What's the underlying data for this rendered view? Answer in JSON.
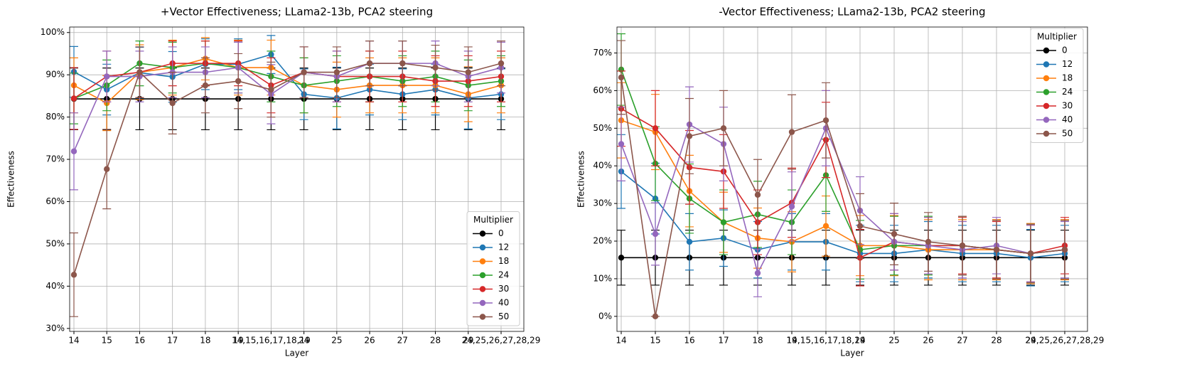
{
  "chart_data": [
    {
      "type": "line",
      "title": "+Vector Effectiveness; LLama2-13b, PCA2 steering",
      "x_label": "Layer",
      "y_label": "Effectiveness",
      "categories": [
        "14",
        "15",
        "16",
        "17",
        "18",
        "19",
        "14,15,16,17,18,19",
        "24",
        "25",
        "26",
        "27",
        "28",
        "29",
        "24,25,26,27,28,29"
      ],
      "ylim": [
        29.3,
        101.3
      ],
      "yticks": [
        {
          "value": 30,
          "label": "30%"
        },
        {
          "value": 40,
          "label": "40%"
        },
        {
          "value": 50,
          "label": "50%"
        },
        {
          "value": 60,
          "label": "60%"
        },
        {
          "value": 70,
          "label": "70%"
        },
        {
          "value": 80,
          "label": "80%"
        },
        {
          "value": 90,
          "label": "90%"
        },
        {
          "value": 100,
          "label": "100%"
        }
      ],
      "grid": true,
      "legend": {
        "title": "Multiplier",
        "loc": "lower right"
      },
      "series": [
        {
          "name": "0",
          "color": "#000000",
          "values": [
            84.3,
            84.3,
            84.3,
            84.3,
            84.3,
            84.3,
            84.3,
            84.3,
            84.3,
            84.3,
            84.3,
            84.3,
            84.3,
            84.3
          ],
          "errors": [
            7.3,
            7.3,
            7.3,
            7.3,
            7.3,
            7.3,
            7.3,
            7.3,
            7.3,
            7.3,
            7.3,
            7.3,
            7.3,
            7.3
          ]
        },
        {
          "name": "12",
          "color": "#1f77b4",
          "values": [
            90.7,
            86.5,
            90.5,
            89.5,
            92.5,
            92.5,
            94.8,
            85.4,
            84.5,
            86.5,
            85.4,
            86.5,
            84.5,
            85.4
          ],
          "errors": [
            6,
            6,
            6,
            6,
            6,
            6,
            4.5,
            6,
            7.3,
            6,
            6,
            6,
            7.3,
            6
          ]
        },
        {
          "name": "18",
          "color": "#ff7f0e",
          "values": [
            87.5,
            83.3,
            90.6,
            91.7,
            93.8,
            91.7,
            91.7,
            87.5,
            86.5,
            87.5,
            87.5,
            87.5,
            85.4,
            87.5
          ],
          "errors": [
            6.5,
            6.5,
            6.5,
            6.5,
            5,
            6.5,
            6.5,
            6.5,
            6.5,
            6.5,
            6.5,
            6.5,
            6.5,
            6.5
          ]
        },
        {
          "name": "24",
          "color": "#2ca02c",
          "values": [
            84.4,
            87.5,
            92.7,
            91.7,
            92.7,
            91.7,
            89.6,
            87.5,
            88.5,
            89.6,
            88.5,
            89.6,
            87.5,
            88.5
          ],
          "errors": [
            6,
            6,
            5.3,
            6,
            5.3,
            6,
            6,
            6.5,
            6,
            6,
            6,
            6,
            6,
            6
          ]
        },
        {
          "name": "30",
          "color": "#d62728",
          "values": [
            84.4,
            89.6,
            90.6,
            92.7,
            92.7,
            92.7,
            87.5,
            90.6,
            89.6,
            89.6,
            89.6,
            88.5,
            88.5,
            89.6
          ],
          "errors": [
            7.3,
            6,
            6,
            5.3,
            5.3,
            5.3,
            6.5,
            6,
            6,
            6,
            6,
            6,
            6,
            6
          ]
        },
        {
          "name": "40",
          "color": "#9467bd",
          "values": [
            71.9,
            89.6,
            89.6,
            90.6,
            90.6,
            91.7,
            85.4,
            90.6,
            89.6,
            92.7,
            92.7,
            92.7,
            89.6,
            91.7
          ],
          "errors": [
            9.1,
            6,
            6,
            6,
            6,
            6,
            7,
            6,
            6,
            5.3,
            5.3,
            5.3,
            6,
            6
          ]
        },
        {
          "name": "50",
          "color": "#8c564b",
          "values": [
            42.7,
            67.7,
            90.6,
            83.3,
            87.5,
            88.5,
            86.5,
            90.6,
            90.6,
            92.7,
            92.7,
            91.7,
            90.6,
            92.7
          ],
          "errors": [
            9.9,
            9.4,
            6,
            7.3,
            6.5,
            6.5,
            6.5,
            6,
            6,
            5.3,
            5.3,
            5.3,
            6,
            5.3
          ]
        }
      ]
    },
    {
      "type": "line",
      "title": "-Vector Effectiveness; LLama2-13b, PCA2 steering",
      "x_label": "Layer",
      "y_label": "Effectiveness",
      "categories": [
        "14",
        "15",
        "16",
        "17",
        "18",
        "19",
        "14,15,16,17,18,19",
        "24",
        "25",
        "26",
        "27",
        "28",
        "29",
        "24,25,26,27,28,29"
      ],
      "ylim": [
        -4.0,
        76.9
      ],
      "yticks": [
        {
          "value": 0,
          "label": "0%"
        },
        {
          "value": 10,
          "label": "10%"
        },
        {
          "value": 20,
          "label": "20%"
        },
        {
          "value": 30,
          "label": "30%"
        },
        {
          "value": 40,
          "label": "40%"
        },
        {
          "value": 50,
          "label": "50%"
        },
        {
          "value": 60,
          "label": "60%"
        },
        {
          "value": 70,
          "label": "70%"
        }
      ],
      "grid": true,
      "legend": {
        "title": "Multiplier",
        "loc": "upper right"
      },
      "series": [
        {
          "name": "0",
          "color": "#000000",
          "values": [
            15.6,
            15.6,
            15.6,
            15.6,
            15.6,
            15.6,
            15.6,
            15.6,
            15.6,
            15.6,
            15.6,
            15.6,
            15.6,
            15.6
          ],
          "errors": [
            7.3,
            7.3,
            7.3,
            7.3,
            7.3,
            7.3,
            7.3,
            7.3,
            7.3,
            7.3,
            7.3,
            7.3,
            7.3,
            7.3
          ]
        },
        {
          "name": "12",
          "color": "#1f77b4",
          "values": [
            38.5,
            31.3,
            19.8,
            20.8,
            17.7,
            19.8,
            19.8,
            16.7,
            16.7,
            17.7,
            16.7,
            16.7,
            15.6,
            16.7
          ],
          "errors": [
            9.8,
            9.4,
            7.5,
            7.5,
            7.5,
            7.5,
            7.5,
            7.5,
            7.5,
            7.5,
            7.5,
            7.5,
            7.5,
            7.5
          ]
        },
        {
          "name": "18",
          "color": "#ff7f0e",
          "values": [
            52.1,
            49.0,
            33.3,
            25.0,
            20.8,
            19.8,
            24.0,
            18.8,
            18.8,
            17.7,
            17.7,
            17.7,
            16.7,
            17.7
          ],
          "errors": [
            10,
            10,
            9.5,
            8,
            8,
            8,
            8,
            8,
            8,
            8,
            8,
            8,
            8,
            8
          ]
        },
        {
          "name": "24",
          "color": "#2ca02c",
          "values": [
            65.6,
            40.6,
            31.3,
            25.0,
            27.1,
            25.0,
            37.5,
            17.7,
            18.8,
            18.8,
            18.8,
            17.7,
            16.7,
            17.7
          ],
          "errors": [
            9.5,
            9.8,
            9.2,
            8.6,
            8.8,
            8.6,
            9.6,
            7.8,
            7.8,
            7.8,
            7.8,
            7.8,
            7.8,
            7.8
          ]
        },
        {
          "name": "30",
          "color": "#d62728",
          "values": [
            55.2,
            50.0,
            39.6,
            38.5,
            25.0,
            30.2,
            46.9,
            15.6,
            19.8,
            18.8,
            18.8,
            17.7,
            16.7,
            18.8
          ],
          "errors": [
            10,
            10,
            9.8,
            9.8,
            8.6,
            9.2,
            10,
            7.5,
            7.5,
            7.5,
            7.5,
            7.5,
            7.5,
            7.5
          ]
        },
        {
          "name": "40",
          "color": "#9467bd",
          "values": [
            45.8,
            21.9,
            51.0,
            45.8,
            11.5,
            29.2,
            50.0,
            28.1,
            19.8,
            18.8,
            17.7,
            18.8,
            16.7,
            17.7
          ],
          "errors": [
            9.8,
            8.3,
            10,
            9.8,
            6.3,
            9.2,
            10,
            9,
            7.5,
            7.5,
            7.5,
            7.5,
            7.5,
            7.5
          ]
        },
        {
          "name": "50",
          "color": "#8c564b",
          "values": [
            63.5,
            0.0,
            47.9,
            50.0,
            32.3,
            49.0,
            52.1,
            24.0,
            21.9,
            19.8,
            18.8,
            17.7,
            16.7,
            17.7
          ],
          "errors": [
            9.8,
            0,
            10,
            10,
            9.4,
            9.9,
            10,
            8.6,
            8.2,
            7.8,
            7.8,
            7.8,
            7.8,
            7.8
          ]
        }
      ]
    }
  ]
}
